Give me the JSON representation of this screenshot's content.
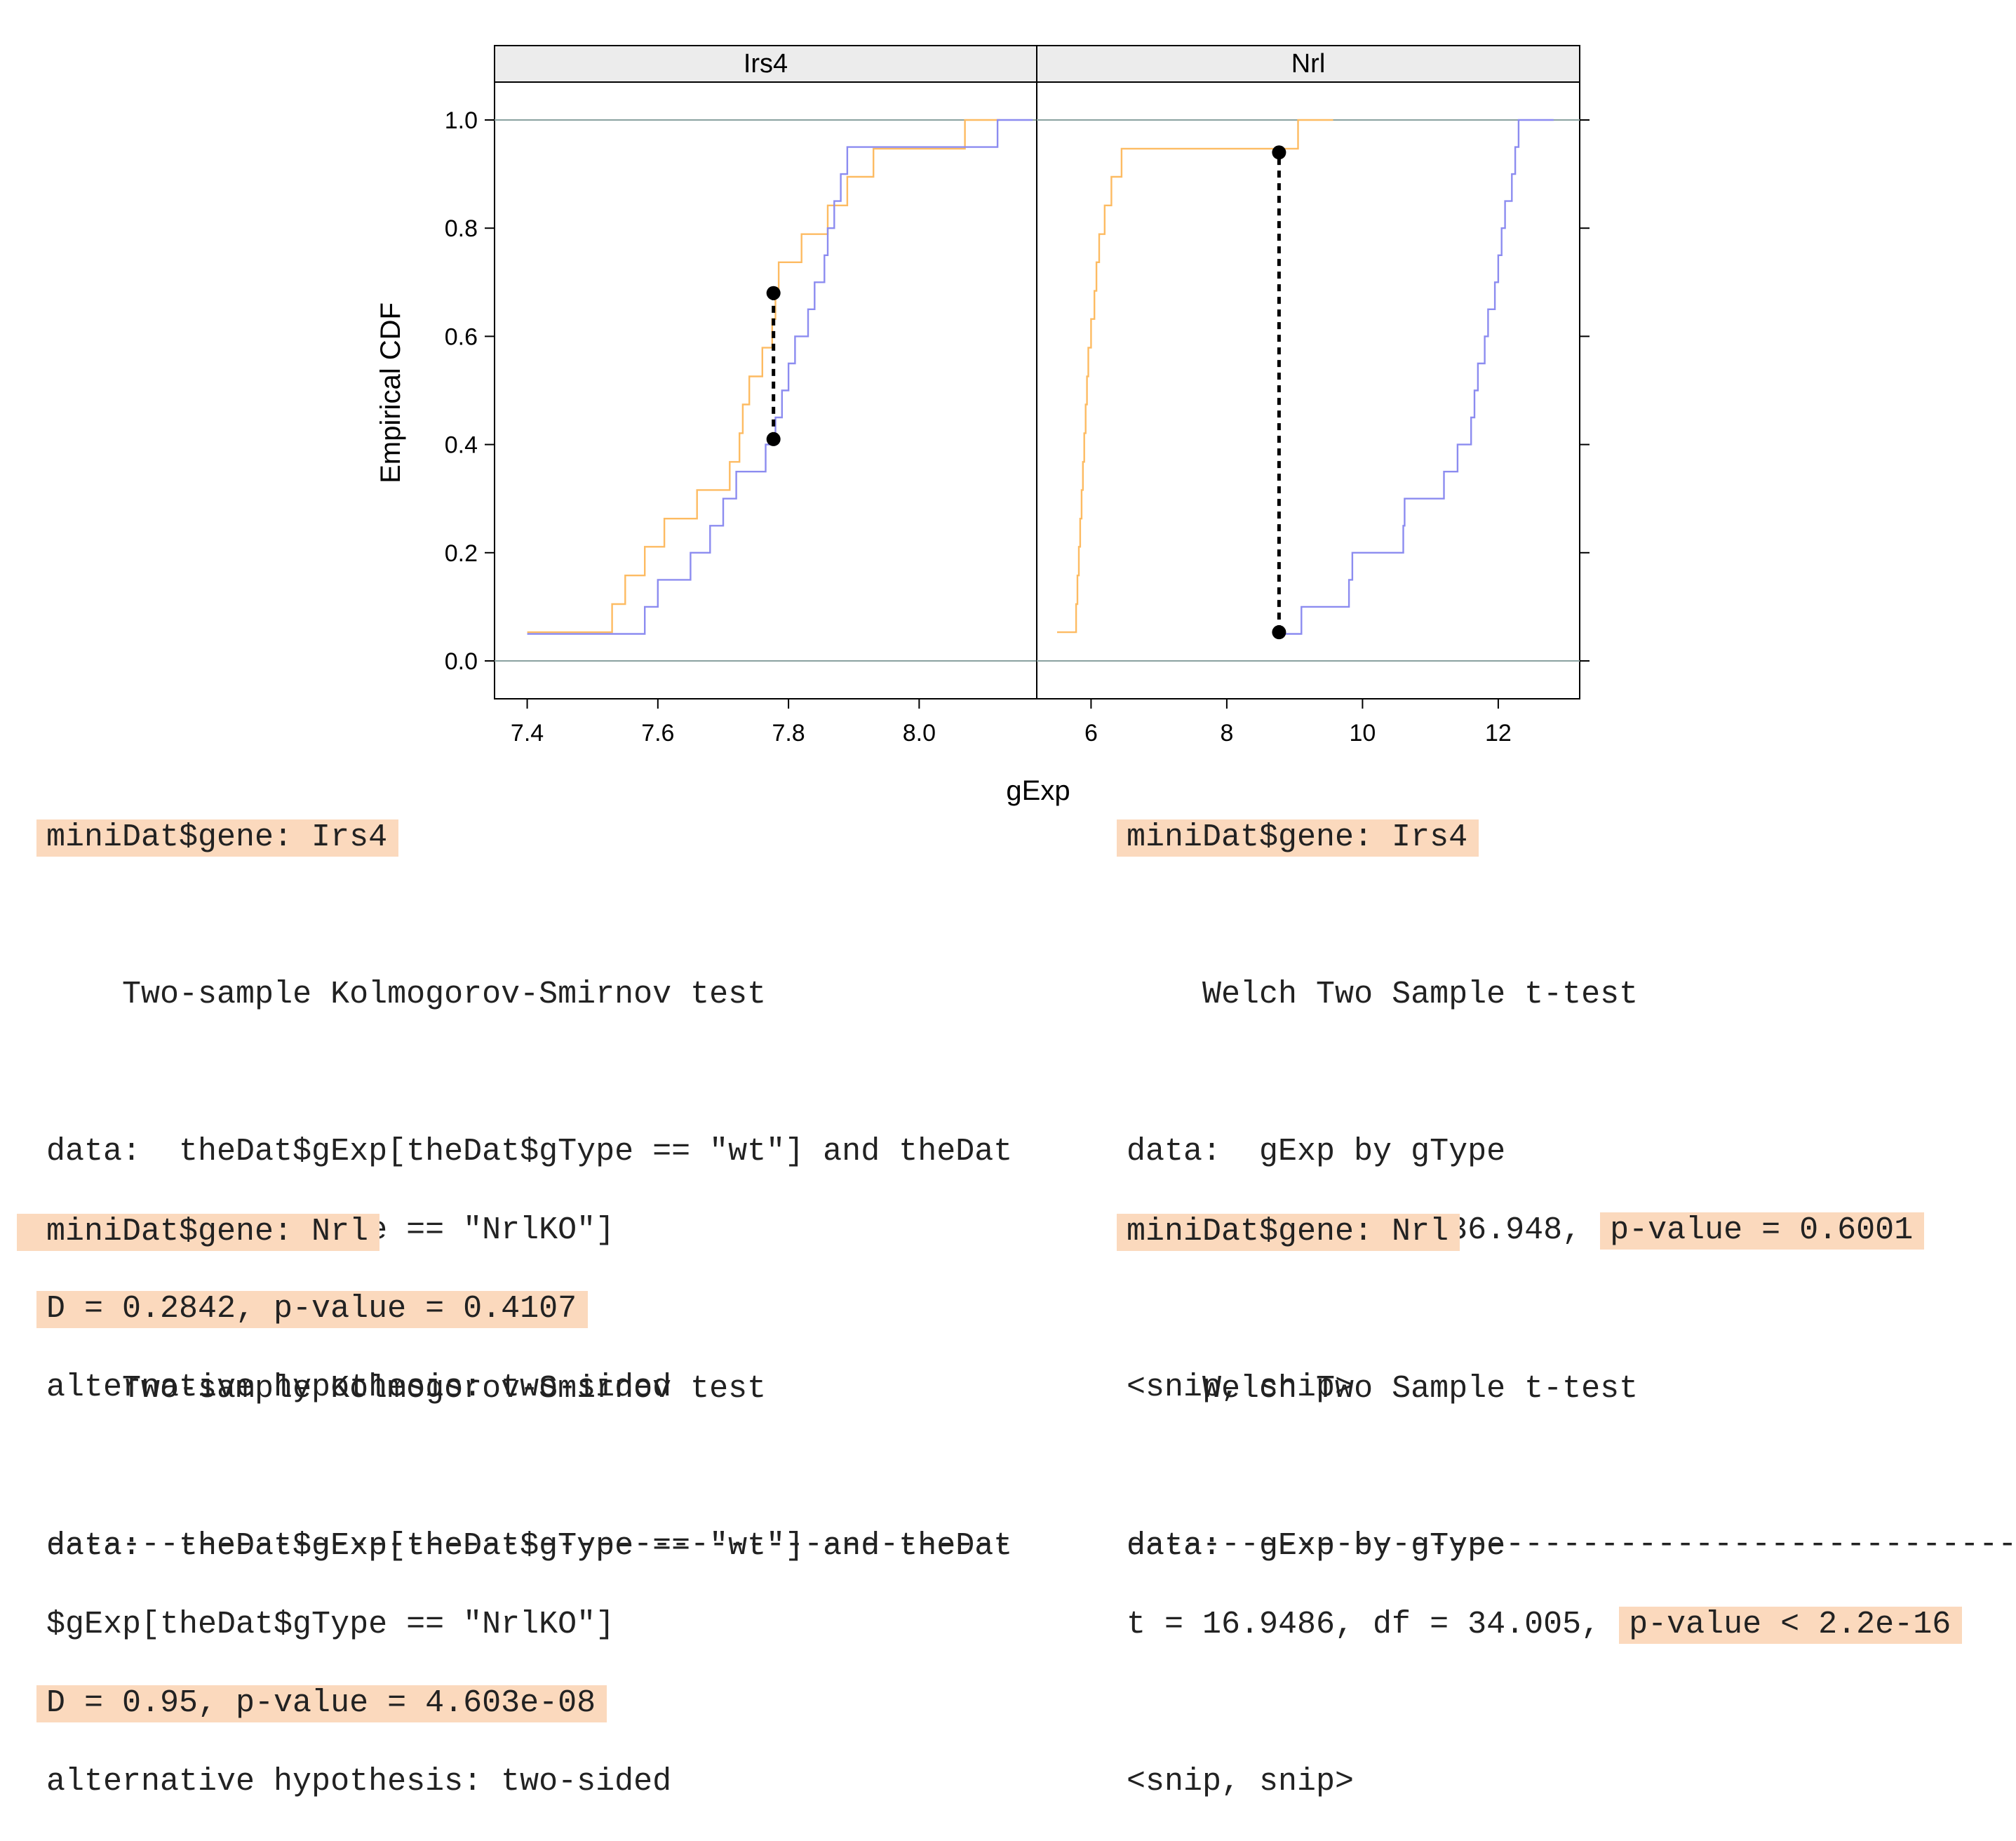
{
  "chart_data": {
    "type": "line",
    "ylabel": "Empirical CDF",
    "xlabel": "gExp",
    "ylim": [
      0.0,
      1.0
    ],
    "yticks": [
      "0.0",
      "0.2",
      "0.4",
      "0.6",
      "0.8",
      "1.0"
    ],
    "colors": {
      "wt": "#fdbb62",
      "NrlKO": "#8c8cf0",
      "ref": "#8aa2a0",
      "ksline": "#000000"
    },
    "panels": [
      {
        "label": "Irs4",
        "xlim": [
          7.35,
          8.18
        ],
        "xticks": [
          "7.4",
          "7.6",
          "7.8",
          "8.0"
        ],
        "series": [
          {
            "values": [
              [
                7.4,
                0.053
              ],
              [
                7.52,
                0.053
              ],
              [
                7.53,
                0.105
              ],
              [
                7.55,
                0.158
              ],
              [
                7.58,
                0.211
              ],
              [
                7.61,
                0.263
              ],
              [
                7.66,
                0.316
              ],
              [
                7.71,
                0.368
              ],
              [
                7.725,
                0.421
              ],
              [
                7.73,
                0.474
              ],
              [
                7.74,
                0.526
              ],
              [
                7.76,
                0.579
              ],
              [
                7.775,
                0.632
              ],
              [
                7.78,
                0.684
              ],
              [
                7.785,
                0.737
              ],
              [
                7.82,
                0.789
              ],
              [
                7.86,
                0.842
              ],
              [
                7.89,
                0.895
              ],
              [
                7.93,
                0.947
              ],
              [
                8.07,
                1.0
              ]
            ]
          },
          {
            "values": [
              [
                7.4,
                0.05
              ],
              [
                7.56,
                0.05
              ],
              [
                7.58,
                0.1
              ],
              [
                7.6,
                0.15
              ],
              [
                7.65,
                0.2
              ],
              [
                7.68,
                0.25
              ],
              [
                7.7,
                0.3
              ],
              [
                7.72,
                0.35
              ],
              [
                7.765,
                0.4
              ],
              [
                7.78,
                0.45
              ],
              [
                7.79,
                0.5
              ],
              [
                7.8,
                0.55
              ],
              [
                7.81,
                0.6
              ],
              [
                7.83,
                0.65
              ],
              [
                7.84,
                0.7
              ],
              [
                7.855,
                0.75
              ],
              [
                7.86,
                0.8
              ],
              [
                7.87,
                0.85
              ],
              [
                7.88,
                0.9
              ],
              [
                7.89,
                0.95
              ],
              [
                8.12,
                1.0
              ]
            ]
          }
        ],
        "ks": {
          "x": 7.777,
          "y_low": 0.41,
          "y_high": 0.68
        }
      },
      {
        "label": "Nrl",
        "xlim": [
          5.2,
          13.2
        ],
        "xticks": [
          "6",
          "8",
          "10",
          "12"
        ],
        "series": [
          {
            "values": [
              [
                5.5,
                0.053
              ],
              [
                5.75,
                0.053
              ],
              [
                5.78,
                0.105
              ],
              [
                5.8,
                0.158
              ],
              [
                5.82,
                0.211
              ],
              [
                5.84,
                0.263
              ],
              [
                5.86,
                0.316
              ],
              [
                5.88,
                0.368
              ],
              [
                5.9,
                0.421
              ],
              [
                5.92,
                0.474
              ],
              [
                5.94,
                0.526
              ],
              [
                5.96,
                0.579
              ],
              [
                6.0,
                0.632
              ],
              [
                6.05,
                0.684
              ],
              [
                6.08,
                0.737
              ],
              [
                6.12,
                0.789
              ],
              [
                6.2,
                0.842
              ],
              [
                6.3,
                0.895
              ],
              [
                6.45,
                0.947
              ],
              [
                9.05,
                1.0
              ]
            ]
          },
          {
            "values": [
              [
                8.75,
                0.05
              ],
              [
                9.05,
                0.05
              ],
              [
                9.1,
                0.1
              ],
              [
                9.8,
                0.15
              ],
              [
                9.85,
                0.2
              ],
              [
                10.6,
                0.25
              ],
              [
                10.62,
                0.3
              ],
              [
                11.2,
                0.35
              ],
              [
                11.4,
                0.4
              ],
              [
                11.6,
                0.45
              ],
              [
                11.65,
                0.5
              ],
              [
                11.7,
                0.55
              ],
              [
                11.8,
                0.6
              ],
              [
                11.85,
                0.65
              ],
              [
                11.95,
                0.7
              ],
              [
                12.0,
                0.75
              ],
              [
                12.05,
                0.8
              ],
              [
                12.1,
                0.85
              ],
              [
                12.2,
                0.9
              ],
              [
                12.25,
                0.95
              ],
              [
                12.3,
                1.0
              ]
            ]
          }
        ],
        "ks": {
          "x": 8.77,
          "y_low": 0.053,
          "y_high": 0.94
        }
      }
    ]
  },
  "ks_output": [
    {
      "gene_line": "miniDat$gene: Irs4",
      "title": "Two-sample Kolmogorov-Smirnov test",
      "data_line_1": "data:  theDat$gExp[theDat$gType == \"wt\"] and theDat",
      "data_line_2": "$gExp[theDat$gType == \"NrlKO\"]",
      "stat_line": "D = 0.2842, p-value = 0.4107",
      "alt_line": "alternative hypothesis: two-sided"
    },
    {
      "gene_line": "miniDat$gene: Nrl",
      "title": "Two-sample Kolmogorov-Smirnov test",
      "data_line_1": "data:  theDat$gExp[theDat$gType == \"wt\"] and theDat",
      "data_line_2": "$gExp[theDat$gType == \"NrlKO\"]",
      "stat_line": "D = 0.95, p-value = 4.603e-08",
      "alt_line": "alternative hypothesis: two-sided"
    }
  ],
  "t_output": [
    {
      "gene_line": "miniDat$gene: Irs4",
      "title": "Welch Two Sample t-test",
      "data_line": "data:  gExp by gType",
      "stat_prefix": "t = 0.5289, df = 36.948, ",
      "pvalue": "p-value = 0.6001",
      "snip": "<snip, snip>"
    },
    {
      "gene_line": "miniDat$gene: Nrl",
      "title": "Welch Two Sample t-test",
      "data_line": "data:  gExp by gType",
      "stat_prefix": "t = 16.9486, df = 34.005, ",
      "pvalue": "p-value < 2.2e-16",
      "snip": "<snip, snip>"
    }
  ],
  "separator_left": "---------------------------------------------------",
  "separator_right": "---------------------------------------------------"
}
